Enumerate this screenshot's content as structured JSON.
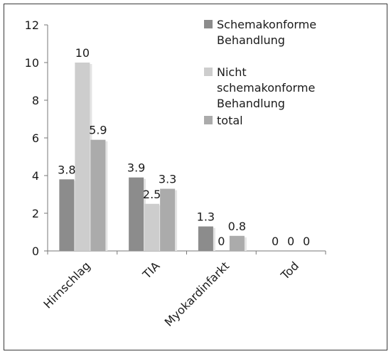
{
  "chart_data": {
    "type": "bar",
    "categories": [
      "Hirnschlag",
      "TIA",
      "Myokardinfarkt",
      "Tod"
    ],
    "series": [
      {
        "name": "Schemakonforme Behandlung",
        "values": [
          3.8,
          3.9,
          1.3,
          0
        ],
        "color": "#8c8c8c"
      },
      {
        "name": "Nicht schemakonforme Behandlung",
        "values": [
          10,
          2.5,
          0,
          0
        ],
        "color": "#cdcdcd"
      },
      {
        "name": "total",
        "values": [
          5.9,
          3.3,
          0.8,
          0
        ],
        "color": "#ababab"
      }
    ],
    "legend_lines": [
      [
        "Schemakonforme",
        "Behandlung"
      ],
      [
        "Nicht",
        "schemakonforme",
        "Behandlung"
      ],
      [
        "total"
      ]
    ],
    "ylim": [
      0,
      12
    ],
    "yticks": [
      0,
      2,
      4,
      6,
      8,
      10,
      12
    ],
    "ytick_labels": [
      "0",
      "2",
      "4",
      "6",
      "8",
      "10",
      "12"
    ],
    "data_labels": [
      [
        "3.8",
        "3.9",
        "1.3",
        "0"
      ],
      [
        "10",
        "2.5",
        "0",
        "0"
      ],
      [
        "5.9",
        "3.3",
        "0.8",
        "0"
      ]
    ],
    "grid": false,
    "legend_position": "top-right",
    "title": "",
    "xlabel": "",
    "ylabel": ""
  }
}
